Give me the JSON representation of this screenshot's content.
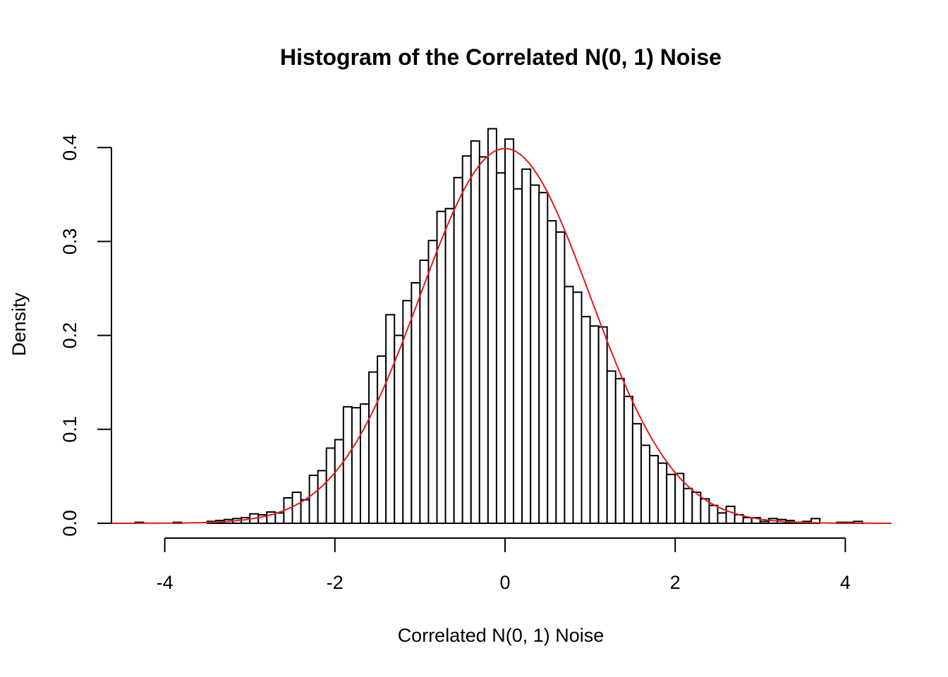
{
  "chart_data": {
    "type": "bar",
    "title": "Histogram of the Correlated N(0, 1) Noise",
    "xlabel": "Correlated N(0, 1) Noise",
    "ylabel": "Density",
    "xlim": [
      -4.7,
      4.55
    ],
    "ylim": [
      0,
      0.42
    ],
    "x_ticks": [
      "-4",
      "-2",
      "0",
      "2",
      "4"
    ],
    "x_tick_values": [
      -4,
      -2,
      0,
      2,
      4
    ],
    "y_ticks": [
      "0.0",
      "0.1",
      "0.2",
      "0.3",
      "0.4"
    ],
    "y_tick_values": [
      0,
      0.1,
      0.2,
      0.3,
      0.4
    ],
    "bin_width": 0.1,
    "bin_start": -3.5,
    "densities": [
      0.002,
      0.003,
      0.004,
      0.005,
      0.006,
      0.01,
      0.009,
      0.012,
      0.011,
      0.027,
      0.033,
      0.025,
      0.051,
      0.056,
      0.08,
      0.089,
      0.124,
      0.123,
      0.127,
      0.161,
      0.178,
      0.222,
      0.2,
      0.237,
      0.256,
      0.28,
      0.301,
      0.332,
      0.335,
      0.368,
      0.391,
      0.407,
      0.39,
      0.42,
      0.373,
      0.409,
      0.356,
      0.377,
      0.36,
      0.352,
      0.322,
      0.31,
      0.252,
      0.246,
      0.22,
      0.21,
      0.209,
      0.162,
      0.154,
      0.135,
      0.106,
      0.083,
      0.072,
      0.064,
      0.052,
      0.053,
      0.037,
      0.033,
      0.026,
      0.019,
      0.011,
      0.018,
      0.009,
      0.006,
      0.006,
      0.002,
      0.005,
      0.004,
      0.003,
      0.001,
      0.002,
      0.005
    ],
    "sparse_bins": [
      {
        "x": -4.3,
        "density": 0.001
      },
      {
        "x": -3.85,
        "density": 0.001
      }
    ],
    "tail_bins": [
      {
        "x": 3.95,
        "density": 0.001
      },
      {
        "x": 4.05,
        "density": 0.001
      },
      {
        "x": 4.15,
        "density": 0.002
      }
    ],
    "curve": {
      "type": "normal",
      "mean": 0,
      "sd": 1,
      "color": "#e31a1c"
    },
    "colors": {
      "bar_fill": "#ffffff",
      "bar_stroke": "#000000",
      "curve": "#e31a1c"
    },
    "grid": false,
    "legend": "none"
  }
}
